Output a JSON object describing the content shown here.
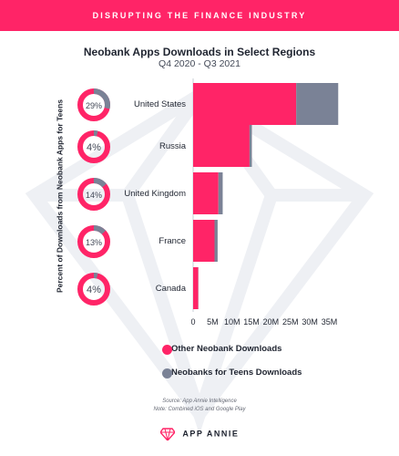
{
  "header": {
    "banner_text": "DISRUPTING THE FINANCE INDUSTRY"
  },
  "chart_data": {
    "type": "bar",
    "orientation": "horizontal",
    "stacked": true,
    "title": "Neobank Apps Downloads in Select Regions",
    "subtitle": "Q4 2020 - Q3 2021",
    "categories": [
      "United States",
      "Russia",
      "United Kingdom",
      "France",
      "Canada"
    ],
    "series": [
      {
        "name": "Other Neobank Downloads",
        "values": [
          26.5,
          14.5,
          6.5,
          5.5,
          1.3
        ]
      },
      {
        "name": "Neobanks for Teens Downloads",
        "values": [
          10.8,
          0.6,
          1.1,
          0.8,
          0.05
        ]
      }
    ],
    "xlim": [
      0,
      37
    ],
    "xticks": [
      0,
      5,
      10,
      15,
      20,
      25,
      30,
      35
    ],
    "xtick_labels": [
      "0",
      "5M",
      "10M",
      "15M",
      "20M",
      "25M",
      "30M",
      "35M"
    ],
    "grid": false,
    "legend_position": "bottom",
    "donuts": {
      "ylabel": "Percent of Downloads from Neobank Apps for Teens",
      "values": [
        29,
        4,
        14,
        13,
        4
      ],
      "labels": [
        "29%",
        "4%",
        "14%",
        "13%",
        "4%"
      ]
    }
  },
  "colors": {
    "accent": "#ff2467",
    "teens": "#7a8296",
    "background_shape": "#eceef3"
  },
  "footer": {
    "source_line1": "Source: App Annie Intelligence",
    "source_line2": "Note: Combined iOS and Google Play",
    "brand": "APP ANNIE"
  }
}
